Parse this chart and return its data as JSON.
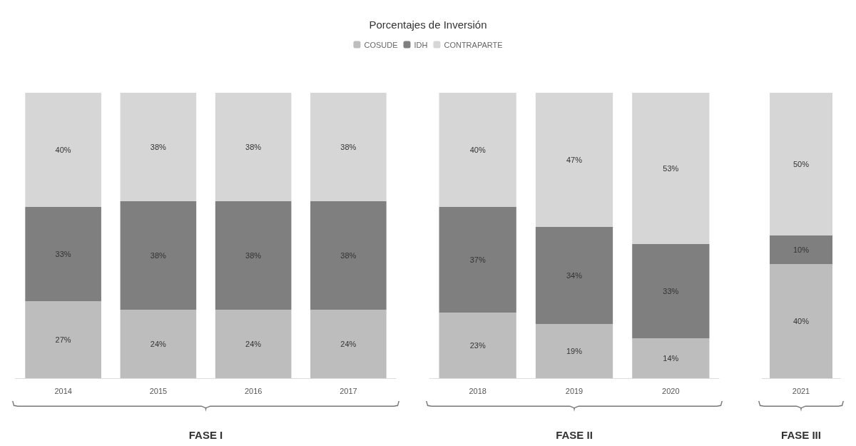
{
  "chart_data": [
    {
      "type": "bar",
      "stacked": true,
      "title": "Porcentajes de Inversión",
      "legend": "top",
      "xlabel": "FASE I",
      "categories": [
        "2014",
        "2015",
        "2016",
        "2017"
      ],
      "series": [
        {
          "name": "COSUDE",
          "color": "#bdbdbd",
          "values": [
            27,
            24,
            24,
            24
          ],
          "value_labels": [
            "27%",
            "24%",
            "24%",
            "24%"
          ]
        },
        {
          "name": "IDH",
          "color": "#7f7f7f",
          "values": [
            33,
            38,
            38,
            38
          ],
          "value_labels": [
            "33%",
            "38%",
            "38%",
            "38%"
          ]
        },
        {
          "name": "CONTRAPARTE",
          "color": "#d6d6d6",
          "values": [
            40,
            38,
            38,
            38
          ],
          "value_labels": [
            "40%",
            "38%",
            "38%",
            "38%"
          ]
        }
      ]
    },
    {
      "type": "bar",
      "stacked": true,
      "xlabel": "FASE II",
      "categories": [
        "2018",
        "2019",
        "2020"
      ],
      "series": [
        {
          "color": "#bdbdbd",
          "values": [
            23,
            19,
            14
          ],
          "value_labels": [
            "23%",
            "19%",
            "14%"
          ]
        },
        {
          "color": "#7f7f7f",
          "values": [
            37,
            34,
            33
          ],
          "value_labels": [
            "37%",
            "34%",
            "33%"
          ]
        },
        {
          "color": "#d6d6d6",
          "values": [
            40,
            47,
            53
          ],
          "value_labels": [
            "40%",
            "47%",
            "53%"
          ]
        }
      ]
    },
    {
      "type": "bar",
      "stacked": true,
      "xlabel": "FASE III",
      "categories": [
        "2021"
      ],
      "series": [
        {
          "color": "#bdbdbd",
          "values": [
            40
          ],
          "value_labels": [
            "40%"
          ]
        },
        {
          "color": "#7f7f7f",
          "values": [
            10
          ],
          "value_labels": [
            "10%"
          ]
        },
        {
          "color": "#d6d6d6",
          "values": [
            50
          ],
          "value_labels": [
            "50%"
          ]
        }
      ]
    }
  ]
}
